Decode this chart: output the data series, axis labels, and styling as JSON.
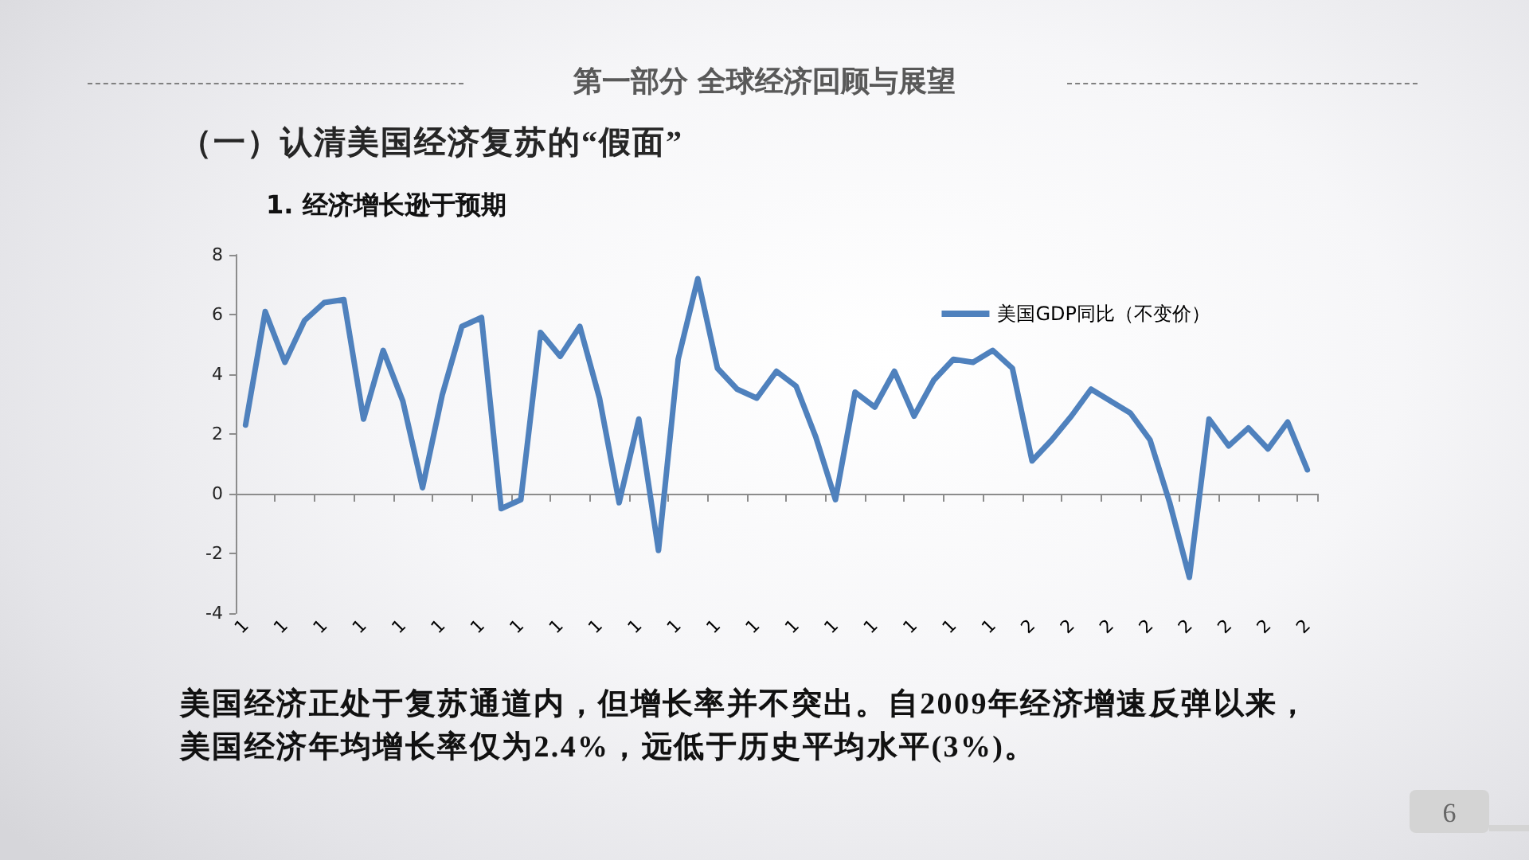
{
  "chart_data": {
    "type": "line",
    "title": "第一部分  全球经济回顾与展望",
    "subtitle": "（一）认清美国经济复苏的“假面”",
    "annotations": [
      "1. 经济增长逊于预期",
      "美国经济正处于复苏通道内，但增长率并不突出。自2009年经济增速反弹以来，",
      "美国经济年均增长率仅为2.4%，远低于历史平均水平(3%)。",
      "6"
    ],
    "categories": [
      "1",
      null,
      "1",
      null,
      "1",
      null,
      "1",
      null,
      "1",
      null,
      "1",
      null,
      "1",
      null,
      "1",
      null,
      "1",
      null,
      "1",
      null,
      "1",
      null,
      "1",
      null,
      "1",
      null,
      "1",
      null,
      "1",
      null,
      "1",
      null,
      "1",
      null,
      "1",
      null,
      "1",
      null,
      "1",
      null,
      "2",
      null,
      "2",
      null,
      "2",
      null,
      "2",
      null,
      "2",
      null,
      "2",
      null,
      "2",
      null,
      "2"
    ],
    "series": [
      {
        "name": "美国GDP同比（不变价）",
        "color": "#4f81bd",
        "values": [
          2.3,
          6.1,
          4.4,
          5.8,
          6.4,
          6.5,
          2.5,
          4.8,
          3.1,
          0.2,
          3.3,
          5.6,
          5.9,
          -0.5,
          -0.2,
          5.4,
          4.6,
          5.6,
          3.2,
          -0.3,
          2.5,
          -1.9,
          4.5,
          7.2,
          4.2,
          3.5,
          3.2,
          4.1,
          3.6,
          1.9,
          -0.2,
          3.4,
          2.9,
          4.1,
          2.6,
          3.8,
          4.5,
          4.4,
          4.8,
          4.2,
          1.1,
          1.8,
          2.6,
          3.5,
          3.1,
          2.7,
          1.8,
          -0.3,
          -2.8,
          2.5,
          1.6,
          2.2,
          1.5,
          2.4,
          0.8
        ]
      }
    ],
    "ylim": [
      -4,
      8
    ],
    "yticks": [
      -4,
      -2,
      0,
      2,
      4,
      6,
      8
    ],
    "legend": "top right",
    "marker": "none",
    "line_style": "solid"
  }
}
